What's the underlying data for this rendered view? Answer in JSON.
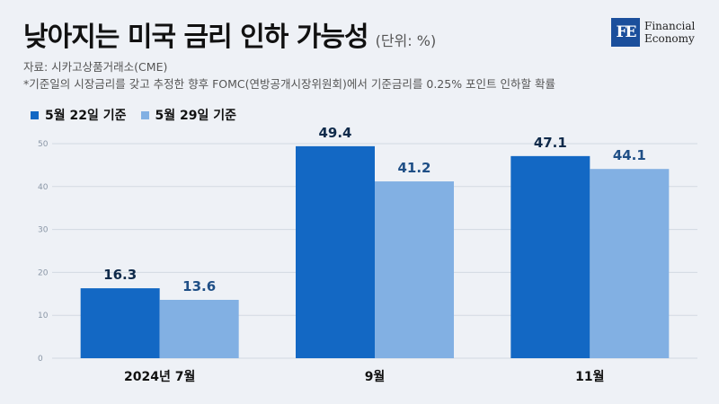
{
  "header": {
    "title": "낮아지는 미국 금리 인하 가능성",
    "unit": "(단위: %)",
    "source": "자료: 시카고상품거래소(CME)",
    "note": "*기준일의 시장금리를 갖고 추정한 향후 FOMC(연방공개시장위원회)에서 기준금리를 0.25% 포인트 인하할 확률"
  },
  "logo": {
    "mark": "FE",
    "line1": "Financial",
    "line2": "Economy"
  },
  "colors": {
    "series1": "#1368c4",
    "series2": "#82b0e3",
    "label1": "#0f2a4a",
    "label2": "#1f4f86"
  },
  "chart_data": {
    "type": "bar",
    "categories": [
      "2024년 7월",
      "9월",
      "11월"
    ],
    "series": [
      {
        "name": "5월 22일 기준",
        "values": [
          16.3,
          49.4,
          47.1
        ]
      },
      {
        "name": "5월 29일 기준",
        "values": [
          13.6,
          41.2,
          44.1
        ]
      }
    ],
    "ylim": [
      0,
      50
    ],
    "yticks": [
      0,
      10,
      20,
      30,
      40,
      50
    ],
    "grid": true,
    "legend_position": "top-left"
  }
}
